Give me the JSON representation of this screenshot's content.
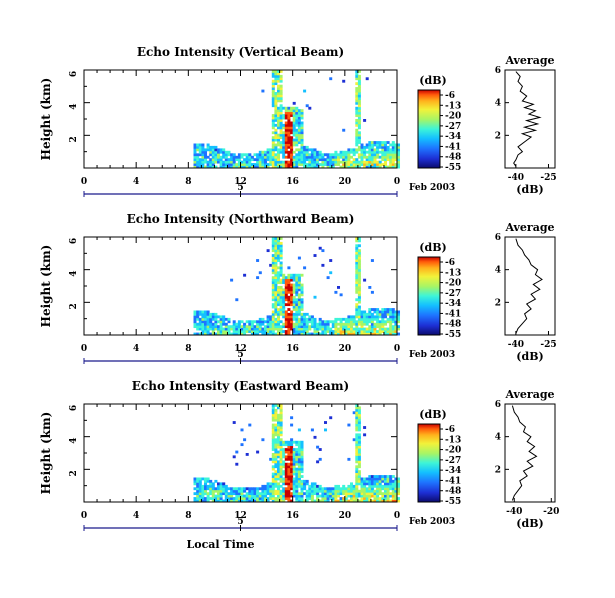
{
  "colorscale": [
    "#0b0b6e",
    "#1d2fd4",
    "#1e73ff",
    "#14c0ff",
    "#3df5d8",
    "#a6f566",
    "#f2f23a",
    "#ffb21c",
    "#ff5a0a",
    "#c80000"
  ],
  "date_label": "Feb 2003",
  "shared_xlabel": "Local Time",
  "chart_data": [
    {
      "type": "heatmap",
      "title": "Echo Intensity (Vertical Beam)",
      "ylabel": "Height (km)",
      "yticks": [
        "2",
        "4",
        "6"
      ],
      "ylim": [
        0,
        6
      ],
      "xticks": [
        "0",
        "4",
        "8",
        "12",
        "16",
        "20",
        "0"
      ],
      "xlim": [
        0,
        24
      ],
      "date_tick": "5",
      "cbar_label": "(dB)",
      "cbar_ticks": [
        "-6",
        "-13",
        "-20",
        "-27",
        "-34",
        "-41",
        "-48",
        "-55"
      ],
      "profile": {
        "title": "Average",
        "xlabel": "(dB)",
        "xticks": [
          "-40",
          "-25"
        ],
        "xlim": [
          -45,
          -22
        ],
        "yticks": [
          "2",
          "4",
          "6"
        ],
        "ylim": [
          0,
          6
        ],
        "points": [
          [
            -40,
            0.1
          ],
          [
            -41,
            0.3
          ],
          [
            -40,
            0.5
          ],
          [
            -39,
            0.8
          ],
          [
            -37,
            1.0
          ],
          [
            -39,
            1.3
          ],
          [
            -36,
            1.6
          ],
          [
            -33,
            1.9
          ],
          [
            -37,
            2.1
          ],
          [
            -31,
            2.3
          ],
          [
            -36,
            2.5
          ],
          [
            -30,
            2.7
          ],
          [
            -35,
            2.9
          ],
          [
            -29,
            3.1
          ],
          [
            -34,
            3.3
          ],
          [
            -31,
            3.5
          ],
          [
            -36,
            3.7
          ],
          [
            -32,
            3.9
          ],
          [
            -37,
            4.1
          ],
          [
            -35,
            4.4
          ],
          [
            -38,
            4.7
          ],
          [
            -37,
            5.0
          ],
          [
            -39,
            5.3
          ],
          [
            -38,
            5.6
          ],
          [
            -40,
            5.9
          ]
        ]
      }
    },
    {
      "type": "heatmap",
      "title": "Echo Intensity (Northward Beam)",
      "ylabel": "Height (km)",
      "yticks": [
        "2",
        "4",
        "6"
      ],
      "ylim": [
        0,
        6
      ],
      "xticks": [
        "0",
        "4",
        "8",
        "12",
        "16",
        "20",
        "0"
      ],
      "xlim": [
        0,
        24
      ],
      "date_tick": "5",
      "cbar_label": "(dB)",
      "cbar_ticks": [
        "-6",
        "-13",
        "-20",
        "-27",
        "-34",
        "-41",
        "-48",
        "-55"
      ],
      "profile": {
        "title": "Average",
        "xlabel": "(dB)",
        "xticks": [
          "-40",
          "-25"
        ],
        "xlim": [
          -45,
          -22
        ],
        "yticks": [
          "2",
          "4",
          "6"
        ],
        "ylim": [
          0,
          6
        ],
        "points": [
          [
            -40,
            0.1
          ],
          [
            -39,
            0.4
          ],
          [
            -37,
            0.7
          ],
          [
            -35,
            1.0
          ],
          [
            -36,
            1.3
          ],
          [
            -33,
            1.6
          ],
          [
            -35,
            1.9
          ],
          [
            -31,
            2.2
          ],
          [
            -33,
            2.5
          ],
          [
            -29,
            2.8
          ],
          [
            -32,
            3.1
          ],
          [
            -28,
            3.4
          ],
          [
            -31,
            3.7
          ],
          [
            -30,
            4.0
          ],
          [
            -33,
            4.3
          ],
          [
            -34,
            4.6
          ],
          [
            -36,
            4.9
          ],
          [
            -37,
            5.2
          ],
          [
            -39,
            5.5
          ],
          [
            -40,
            5.9
          ]
        ]
      }
    },
    {
      "type": "heatmap",
      "title": "Echo Intensity (Eastward Beam)",
      "ylabel": "Height (km)",
      "yticks": [
        "2",
        "4",
        "6"
      ],
      "ylim": [
        0,
        6
      ],
      "xticks": [
        "0",
        "4",
        "8",
        "12",
        "16",
        "20",
        "0"
      ],
      "xlim": [
        0,
        24
      ],
      "date_tick": "5",
      "cbar_label": "(dB)",
      "cbar_ticks": [
        "-6",
        "-13",
        "-20",
        "-27",
        "-34",
        "-41",
        "-48",
        "-55"
      ],
      "profile": {
        "title": "Average",
        "xlabel": "(dB)",
        "xticks": [
          "-40",
          "-20"
        ],
        "xlim": [
          -45,
          -18
        ],
        "yticks": [
          "2",
          "4",
          "6"
        ],
        "ylim": [
          0,
          6
        ],
        "points": [
          [
            -41,
            0.1
          ],
          [
            -40,
            0.4
          ],
          [
            -38,
            0.7
          ],
          [
            -36,
            1.0
          ],
          [
            -37,
            1.3
          ],
          [
            -33,
            1.6
          ],
          [
            -35,
            1.9
          ],
          [
            -30,
            2.2
          ],
          [
            -33,
            2.5
          ],
          [
            -28,
            2.8
          ],
          [
            -32,
            3.1
          ],
          [
            -29,
            3.4
          ],
          [
            -33,
            3.7
          ],
          [
            -31,
            4.0
          ],
          [
            -35,
            4.3
          ],
          [
            -34,
            4.6
          ],
          [
            -37,
            4.9
          ],
          [
            -38,
            5.2
          ],
          [
            -40,
            5.5
          ],
          [
            -41,
            5.9
          ]
        ]
      }
    }
  ]
}
